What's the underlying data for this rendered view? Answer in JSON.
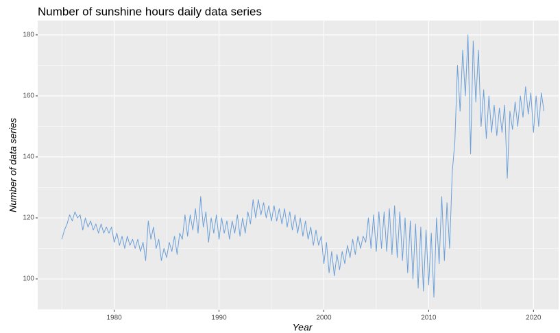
{
  "chart_data": {
    "type": "line",
    "title": "Number of sunshine hours daily data series",
    "x_label": "Year",
    "y_label": "Number of data series",
    "x": [
      1975,
      1975.25,
      1975.5,
      1975.75,
      1976,
      1976.25,
      1976.5,
      1976.75,
      1977,
      1977.25,
      1977.5,
      1977.75,
      1978,
      1978.25,
      1978.5,
      1978.75,
      1979,
      1979.25,
      1979.5,
      1979.75,
      1980,
      1980.25,
      1980.5,
      1980.75,
      1981,
      1981.25,
      1981.5,
      1981.75,
      1982,
      1982.25,
      1982.5,
      1982.75,
      1983,
      1983.25,
      1983.5,
      1983.75,
      1984,
      1984.25,
      1984.5,
      1984.75,
      1985,
      1985.25,
      1985.5,
      1985.75,
      1986,
      1986.25,
      1986.5,
      1986.75,
      1987,
      1987.25,
      1987.5,
      1987.75,
      1988,
      1988.25,
      1988.5,
      1988.75,
      1989,
      1989.25,
      1989.5,
      1989.75,
      1990,
      1990.25,
      1990.5,
      1990.75,
      1991,
      1991.25,
      1991.5,
      1991.75,
      1992,
      1992.25,
      1992.5,
      1992.75,
      1993,
      1993.25,
      1993.5,
      1993.75,
      1994,
      1994.25,
      1994.5,
      1994.75,
      1995,
      1995.25,
      1995.5,
      1995.75,
      1996,
      1996.25,
      1996.5,
      1996.75,
      1997,
      1997.25,
      1997.5,
      1997.75,
      1998,
      1998.25,
      1998.5,
      1998.75,
      1999,
      1999.25,
      1999.5,
      1999.75,
      2000,
      2000.25,
      2000.5,
      2000.75,
      2001,
      2001.25,
      2001.5,
      2001.75,
      2002,
      2002.25,
      2002.5,
      2002.75,
      2003,
      2003.25,
      2003.5,
      2003.75,
      2004,
      2004.25,
      2004.5,
      2004.75,
      2005,
      2005.25,
      2005.5,
      2005.75,
      2006,
      2006.25,
      2006.5,
      2006.75,
      2007,
      2007.25,
      2007.5,
      2007.75,
      2008,
      2008.25,
      2008.5,
      2008.75,
      2009,
      2009.25,
      2009.5,
      2009.75,
      2010,
      2010.25,
      2010.5,
      2010.75,
      2011,
      2011.25,
      2011.5,
      2011.75,
      2012,
      2012.25,
      2012.5,
      2012.75,
      2013,
      2013.25,
      2013.5,
      2013.75,
      2014,
      2014.25,
      2014.5,
      2014.75,
      2015,
      2015.25,
      2015.5,
      2015.75,
      2016,
      2016.25,
      2016.5,
      2016.75,
      2017,
      2017.25,
      2017.5,
      2017.75,
      2018,
      2018.25,
      2018.5,
      2018.75,
      2019,
      2019.25,
      2019.5,
      2019.75,
      2020,
      2020.25,
      2020.5,
      2020.75,
      2021
    ],
    "values": [
      113,
      116,
      118,
      121,
      119,
      122,
      120,
      121,
      116,
      120,
      117,
      119,
      116,
      118,
      115,
      118,
      115,
      117,
      115,
      117,
      112,
      115,
      111,
      114,
      110,
      114,
      111,
      113,
      110,
      113,
      109,
      112,
      106,
      119,
      113,
      117,
      110,
      113,
      106,
      110,
      107,
      112,
      109,
      114,
      108,
      115,
      113,
      121,
      114,
      121,
      116,
      123,
      115,
      127,
      117,
      122,
      112,
      120,
      115,
      121,
      113,
      120,
      115,
      119,
      113,
      119,
      115,
      121,
      114,
      120,
      115,
      122,
      118,
      126,
      120,
      126,
      121,
      125,
      120,
      124,
      119,
      124,
      119,
      123,
      118,
      123,
      117,
      122,
      116,
      121,
      115,
      120,
      114,
      119,
      113,
      117,
      111,
      116,
      111,
      114,
      105,
      112,
      102,
      109,
      101,
      108,
      103,
      109,
      105,
      111,
      107,
      113,
      108,
      114,
      110,
      114,
      112,
      120,
      110,
      121,
      109,
      122,
      110,
      122,
      109,
      123,
      108,
      124,
      107,
      122,
      106,
      120,
      102,
      119,
      100,
      118,
      97,
      117,
      96,
      116,
      98,
      115,
      94,
      120,
      105,
      127,
      106,
      125,
      110,
      135,
      145,
      170,
      155,
      175,
      160,
      180,
      141,
      178,
      158,
      175,
      150,
      162,
      146,
      160,
      148,
      157,
      147,
      156,
      148,
      157,
      133,
      155,
      149,
      158,
      150,
      160,
      153,
      163,
      154,
      161,
      148,
      160,
      150,
      161,
      155
    ],
    "color": "#6a9fd8",
    "xlim": [
      1972.7,
      2022.4
    ],
    "ylim": [
      89.9,
      184.7
    ],
    "xticks": [
      1980,
      1990,
      2000,
      2010,
      2020
    ],
    "yticks": [
      100,
      120,
      140,
      160,
      180
    ],
    "grid": true
  }
}
